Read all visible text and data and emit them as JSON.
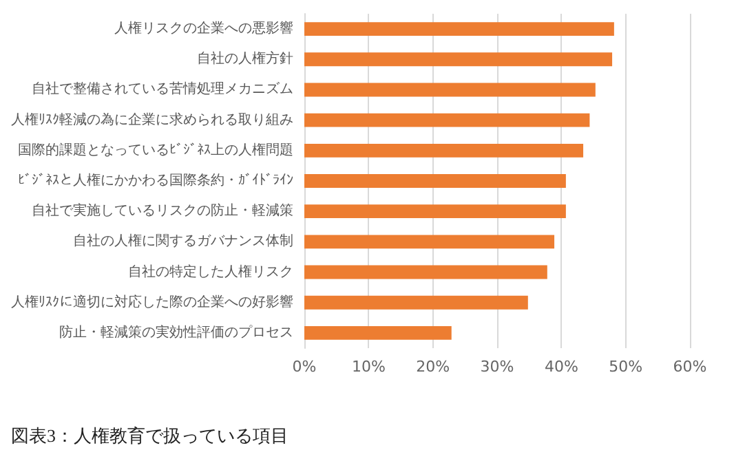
{
  "chart_data": {
    "type": "bar",
    "orientation": "horizontal",
    "categories": [
      "人権リスクの企業への悪影響",
      "自社の人権方針",
      "自社で整備されている苦情処理メカニズム",
      "人権ﾘｽｸ軽減の為に企業に求められる取り組み",
      "国際的課題となっているﾋﾞｼﾞﾈｽ上の人権問題",
      "ﾋﾞｼﾞﾈｽと人権にかかわる国際条約・ｶﾞｲﾄﾞﾗｲﾝ",
      "自社で実施しているリスクの防止・軽減策",
      "自社の人権に関するガバナンス体制",
      "自社の特定した人権リスク",
      "人権ﾘｽｸに適切に対応した際の企業への好影響",
      "防止・軽減策の実効性評価のプロセス"
    ],
    "values": [
      48.2,
      47.9,
      45.3,
      44.4,
      43.4,
      40.7,
      40.7,
      38.9,
      37.8,
      34.8,
      22.9
    ],
    "color": "#ed7d31",
    "xlim": [
      0,
      60
    ],
    "xticks": [
      {
        "value": 0,
        "label": "0%"
      },
      {
        "value": 10,
        "label": "10%"
      },
      {
        "value": 20,
        "label": "20%"
      },
      {
        "value": 30,
        "label": "30%"
      },
      {
        "value": 40,
        "label": "40%"
      },
      {
        "value": 50,
        "label": "50%"
      },
      {
        "value": 60,
        "label": "60%"
      }
    ],
    "grid": "x",
    "annotations": [
      "図表3：人権教育で扱っている項目"
    ]
  }
}
